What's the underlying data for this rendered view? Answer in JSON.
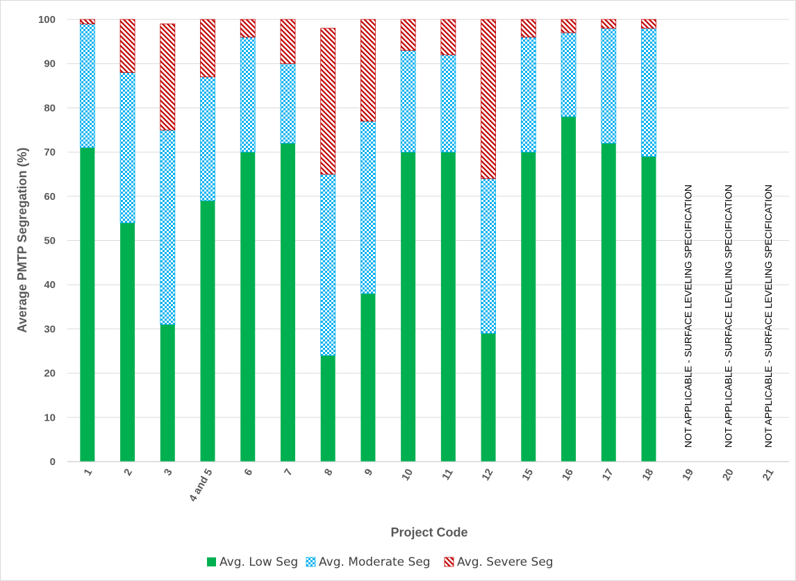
{
  "chart_data": {
    "type": "bar",
    "stacked": true,
    "xlabel": "Project Code",
    "ylabel": "Average PMTP Segregation (%)",
    "ylim": [
      0,
      100
    ],
    "yticks": [
      0,
      10,
      20,
      30,
      40,
      50,
      60,
      70,
      80,
      90,
      100
    ],
    "grid": true,
    "legend_position": "bottom",
    "categories": [
      "1",
      "2",
      "3",
      "4 and 5",
      "6",
      "7",
      "8",
      "9",
      "10",
      "11",
      "12",
      "15",
      "16",
      "17",
      "18",
      "19",
      "20",
      "21"
    ],
    "series": [
      {
        "name": "Avg. Low Seg",
        "color": "#00b050",
        "pattern": "solid",
        "values": [
          71,
          54,
          31,
          59,
          70,
          72,
          24,
          38,
          70,
          70,
          29,
          70,
          78,
          72,
          69,
          null,
          null,
          null
        ]
      },
      {
        "name": "Avg. Moderate Seg",
        "color": "#00b0f0",
        "pattern": "checker",
        "values": [
          28,
          34,
          44,
          28,
          26,
          18,
          41,
          39,
          23,
          22,
          35,
          26,
          19,
          26,
          29,
          null,
          null,
          null
        ]
      },
      {
        "name": "Avg. Severe Seg",
        "color": "#c00000",
        "pattern": "diagonal",
        "values": [
          1,
          12,
          24,
          13,
          4,
          10,
          33,
          23,
          7,
          8,
          36,
          4,
          3,
          2,
          2,
          null,
          null,
          null
        ]
      }
    ],
    "annotations": [
      {
        "category": "19",
        "text": "NOT APPLICABLE - SURFACE LEVELING SPECIFICATION"
      },
      {
        "category": "20",
        "text": "NOT APPLICABLE - SURFACE LEVELING SPECIFICATION"
      },
      {
        "category": "21",
        "text": "NOT APPLICABLE - SURFACE LEVELING SPECIFICATION"
      }
    ]
  }
}
